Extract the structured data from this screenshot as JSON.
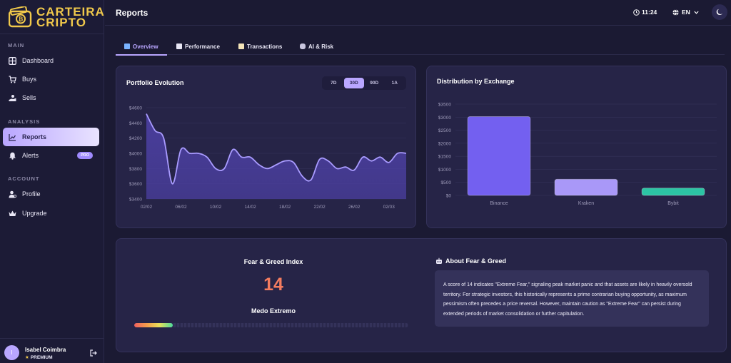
{
  "brand": {
    "line1": "CARTEIRA",
    "line2": "CRIPTO"
  },
  "sidebar": {
    "sections": [
      {
        "label": "MAIN",
        "items": [
          {
            "label": "Dashboard",
            "icon": "dashboard-icon"
          },
          {
            "label": "Buys",
            "icon": "cart-icon"
          },
          {
            "label": "Sells",
            "icon": "sell-icon"
          }
        ]
      },
      {
        "label": "ANALYSIS",
        "items": [
          {
            "label": "Reports",
            "icon": "chart-icon",
            "active": true
          },
          {
            "label": "Alerts",
            "icon": "bell-icon",
            "badge": "PRO"
          }
        ]
      },
      {
        "label": "ACCOUNT",
        "items": [
          {
            "label": "Profile",
            "icon": "user-icon"
          },
          {
            "label": "Upgrade",
            "icon": "crown-icon"
          }
        ]
      }
    ]
  },
  "user": {
    "initial": "I",
    "name": "Isabel Coimbra",
    "tier": "PREMIUM"
  },
  "header": {
    "title": "Reports",
    "time": "11:24",
    "language": "EN"
  },
  "tabs": [
    {
      "label": "Overview",
      "active": true
    },
    {
      "label": "Performance"
    },
    {
      "label": "Transactions"
    },
    {
      "label": "AI & Risk"
    }
  ],
  "portfolio": {
    "title": "Portfolio Evolution",
    "ranges": [
      "7D",
      "30D",
      "90D",
      "1A"
    ],
    "active_range": "30D"
  },
  "distribution": {
    "title": "Distribution by Exchange"
  },
  "chart_data": [
    {
      "type": "area",
      "title": "Portfolio Evolution",
      "x": [
        "02/02",
        "03/02",
        "04/02",
        "05/02",
        "06/02",
        "07/02",
        "08/02",
        "09/02",
        "10/02",
        "11/02",
        "12/02",
        "13/02",
        "14/02",
        "15/02",
        "16/02",
        "17/02",
        "18/02",
        "19/02",
        "20/02",
        "21/02",
        "22/02",
        "23/02",
        "24/02",
        "25/02",
        "26/02",
        "27/02",
        "28/02",
        "01/03",
        "02/03",
        "03/03",
        "04/03"
      ],
      "x_ticks": [
        "02/02",
        "06/02",
        "10/02",
        "14/02",
        "18/02",
        "22/02",
        "26/02",
        "02/03"
      ],
      "values": [
        4520,
        4300,
        4200,
        3600,
        4050,
        4000,
        4000,
        3950,
        3800,
        3800,
        4050,
        3950,
        3950,
        3850,
        3800,
        3850,
        3900,
        3880,
        3700,
        3650,
        3920,
        3900,
        3800,
        3820,
        3780,
        3950,
        3900,
        3950,
        3880,
        4000,
        4000
      ],
      "ylim": [
        3400,
        4600
      ],
      "y_ticks": [
        "$3400",
        "$3600",
        "$3800",
        "$4000",
        "$4200",
        "$4400",
        "$4600"
      ],
      "grid": true,
      "colors": {
        "line": "#a99bff",
        "fill": "#4b3fa0"
      }
    },
    {
      "type": "bar",
      "title": "Distribution by Exchange",
      "categories": [
        "Binance",
        "Kraken",
        "Bybit"
      ],
      "values": [
        3020,
        620,
        280
      ],
      "ylim": [
        0,
        3500
      ],
      "y_ticks": [
        "$0",
        "$500",
        "$1000",
        "$1500",
        "$2000",
        "$2500",
        "$3000",
        "$3500"
      ],
      "grid": true,
      "colors": [
        "#7360f0",
        "#a998f8",
        "#2cc4a4"
      ]
    }
  ],
  "fear_greed": {
    "title": "Fear & Greed Index",
    "value": "14",
    "label": "Medo Extremo",
    "fill_fraction": 0.14,
    "about_title": "About Fear & Greed",
    "about_text": "A score of 14 indicates \"Extreme Fear,\" signaling peak market panic and that assets are likely in heavily oversold territory. For strategic investors, this historically represents a prime contrarian buying opportunity, as maximum pessimism often precedes a price reversal. However, maintain caution as \"Extreme Fear\" can persist during extended periods of market consolidation or further capitulation."
  }
}
